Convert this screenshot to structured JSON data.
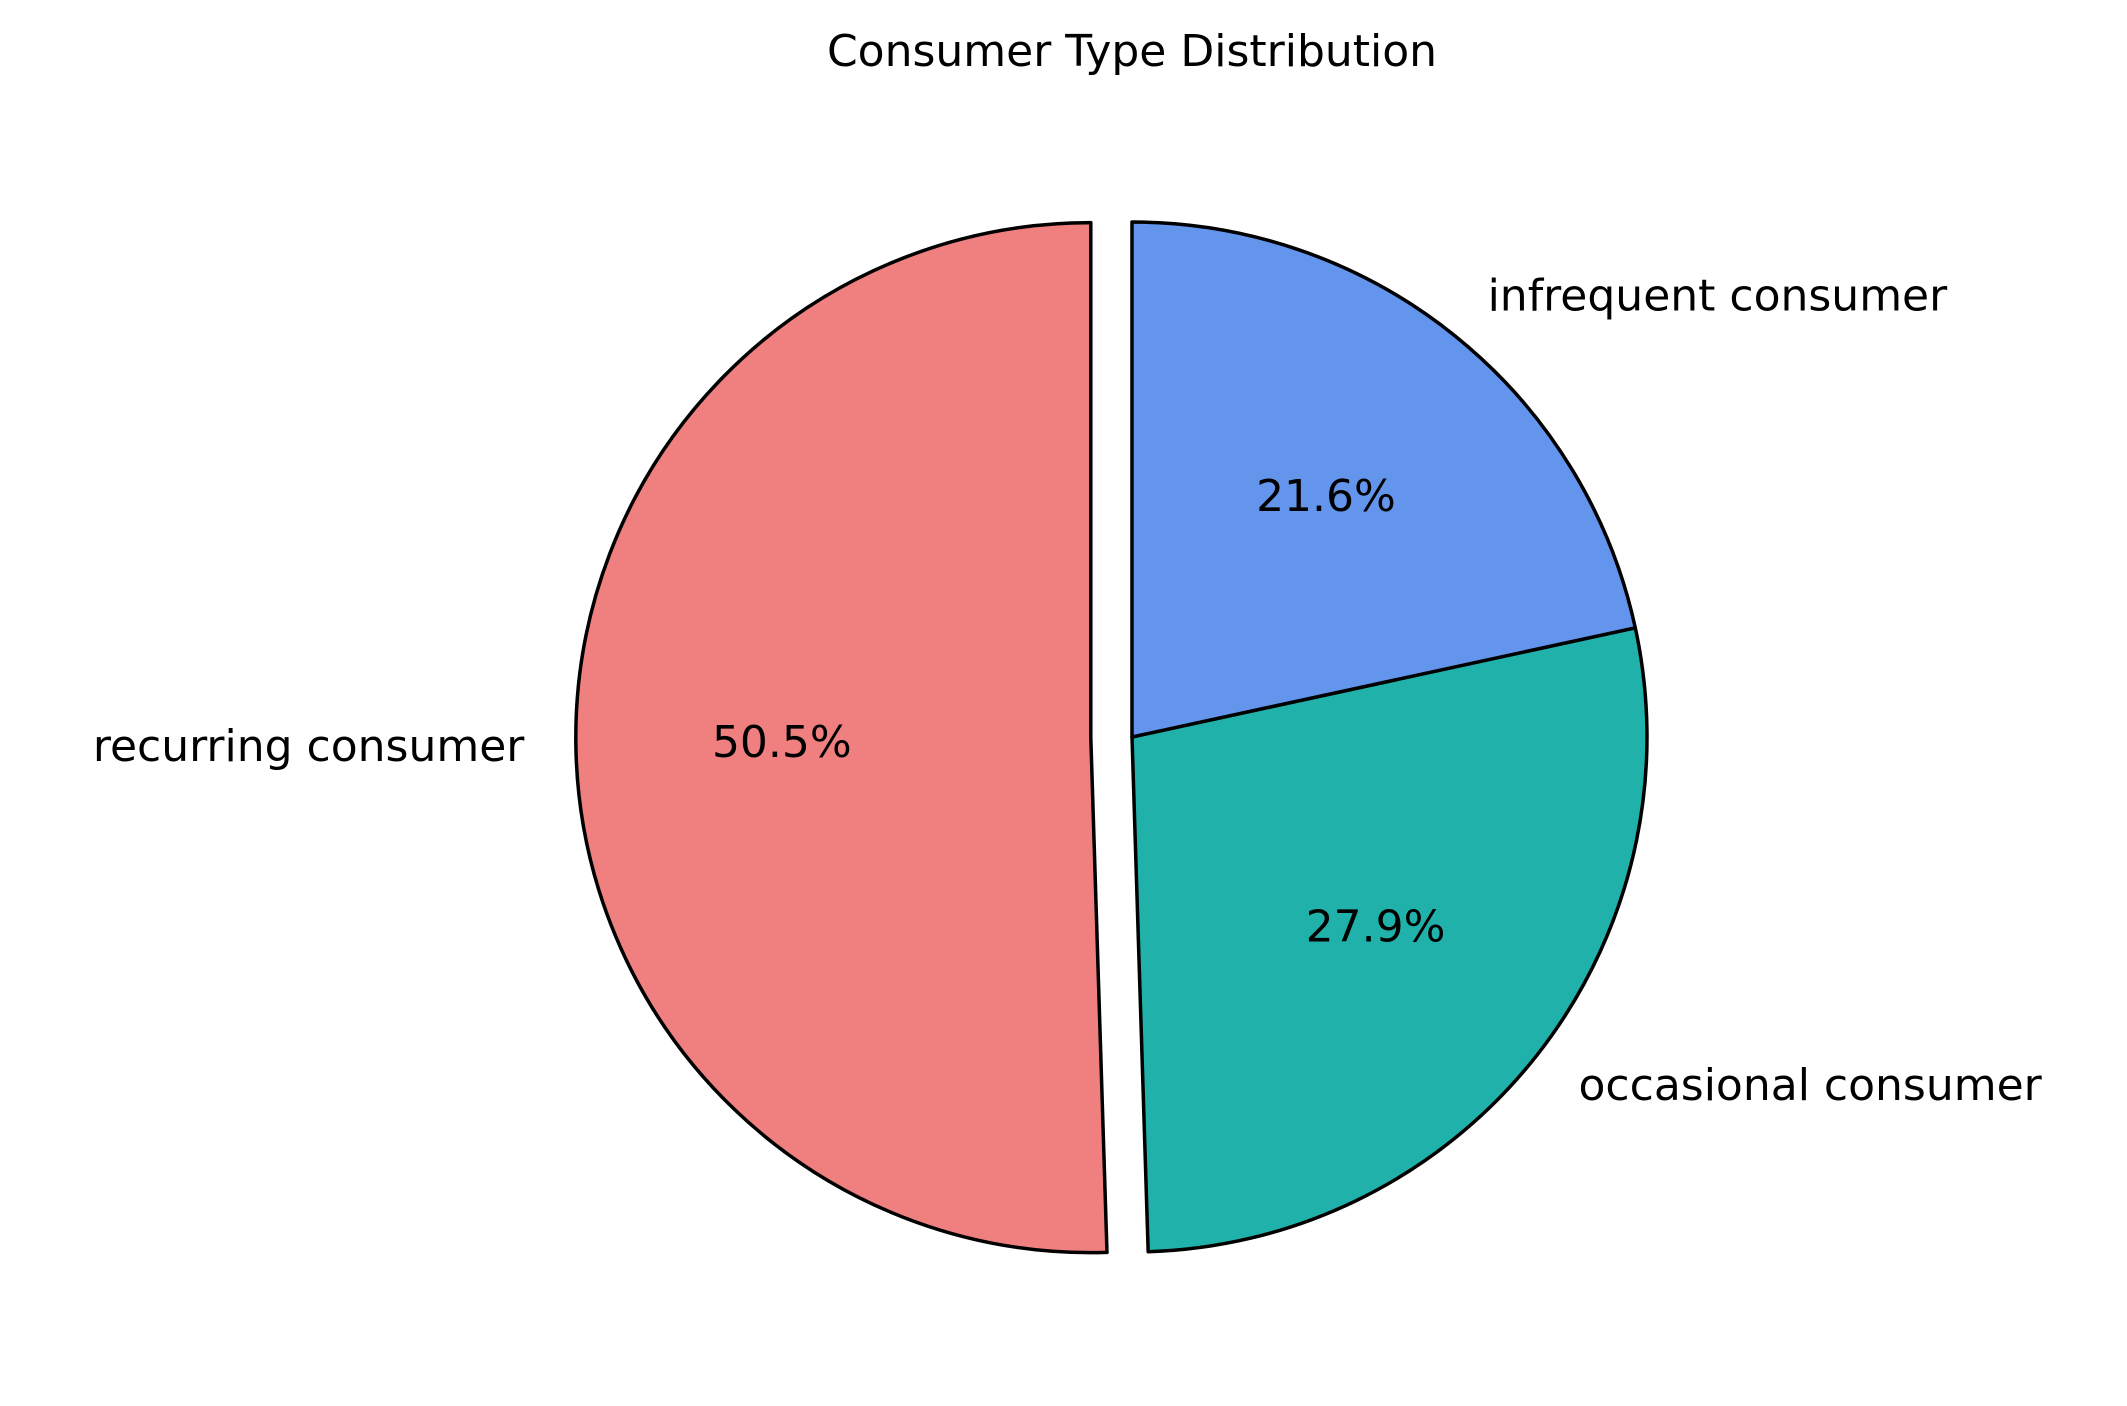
{
  "chart_data": {
    "type": "pie",
    "title": "Consumer Type  Distribution",
    "categories": [
      "recurring consumer",
      "occasional consumer",
      "infrequent consumer"
    ],
    "values": [
      50.5,
      27.9,
      21.6
    ],
    "percent_labels": [
      "50.5%",
      "27.9%",
      "21.6%"
    ],
    "colors": [
      "#f08080",
      "#20b2aa",
      "#6495ed"
    ],
    "exploded": [
      true,
      false,
      false
    ],
    "start_angle": "top (90°)",
    "direction": "counterclockwise from recurring consumer",
    "edge_color": "#000000"
  }
}
